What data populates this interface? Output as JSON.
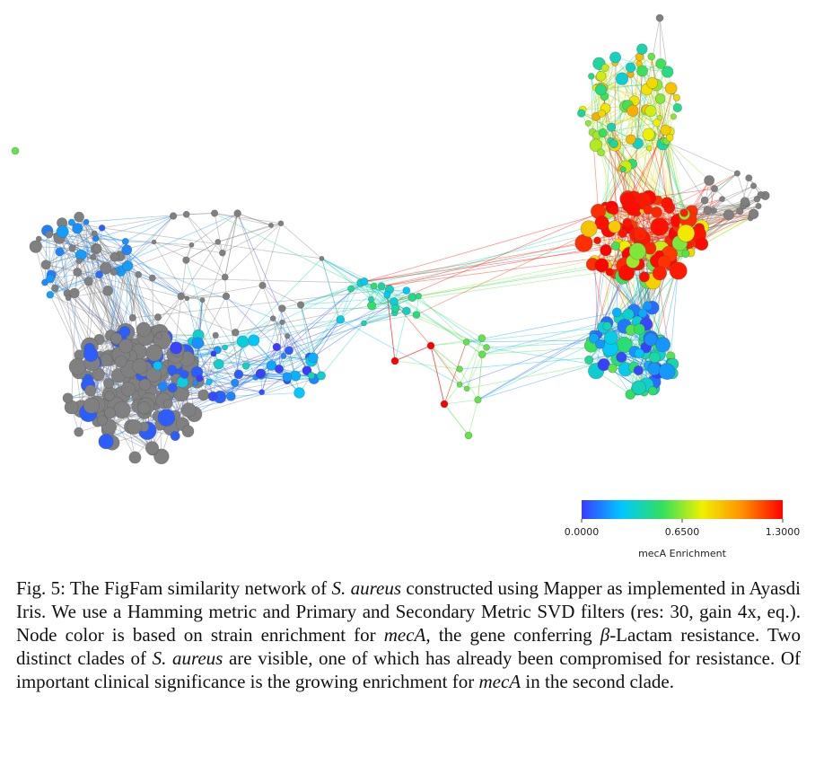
{
  "figure": {
    "colorbar": {
      "colors": [
        "#3b3bff",
        "#00c8ff",
        "#30e060",
        "#f0f000",
        "#ff9000",
        "#ff0000"
      ],
      "ticks": [
        {
          "value": 0,
          "label": "0.0000"
        },
        {
          "value": 0.65,
          "label": "0.6500"
        },
        {
          "value": 1.3,
          "label": "1.3000"
        }
      ],
      "label": "mecA Enrichment"
    },
    "caption": [
      {
        "text": "Fig. 5: The FigFam similarity network of "
      },
      {
        "text": "S. aureus",
        "style": "italic"
      },
      {
        "text": " constructed using Mapper as implemented in Ayasdi Iris. We use a Hamming metric and Primary and Secondary Metric SVD filters (res: 30, gain 4x, eq.). Node color is based on strain enrichment for "
      },
      {
        "text": "mecA",
        "style": "italic"
      },
      {
        "text": ", the gene conferring "
      },
      {
        "text": "β",
        "style": "italic"
      },
      {
        "text": "-Lactam resistance. Two distinct clades of "
      },
      {
        "text": "S. aureus",
        "style": "italic"
      },
      {
        "text": " are visible, one of which has already been compromised for resistance. Of important clinical significance is the growing enrichment for "
      },
      {
        "text": "mecA",
        "style": "italic"
      },
      {
        "text": " in the second clade."
      }
    ]
  }
}
